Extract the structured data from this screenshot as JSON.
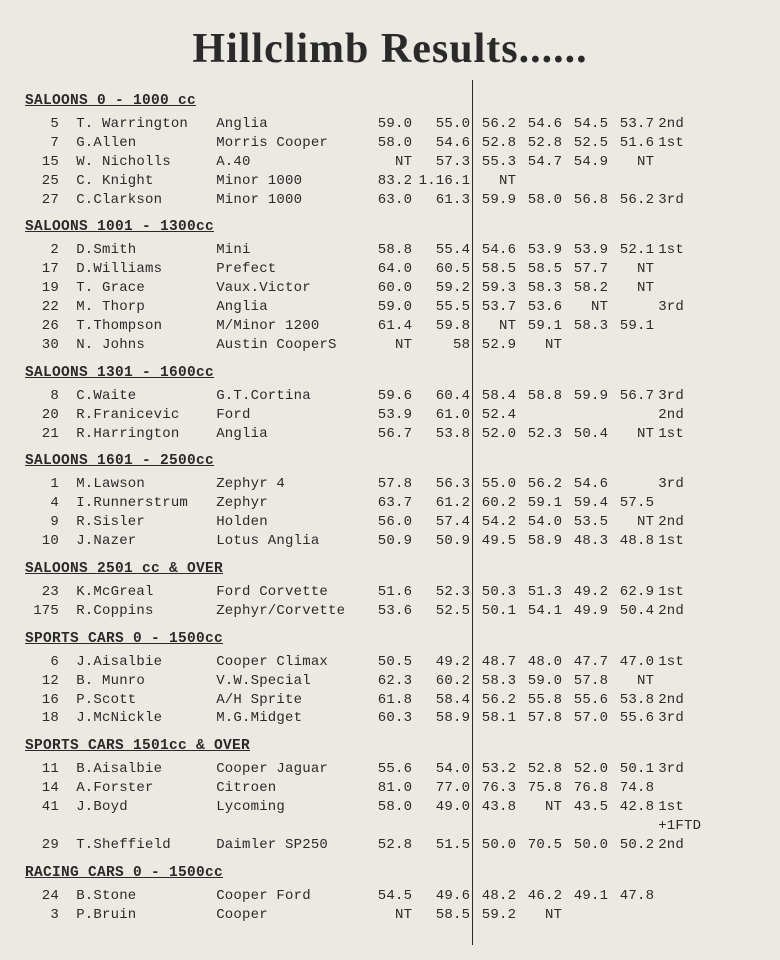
{
  "title": "Hillclimb Results......",
  "text_color": "#2a2a2a",
  "background_color": "#ece9e2",
  "sections": [
    {
      "header": "SALOONS 0 - 1000 cc",
      "rows": [
        {
          "num": "5",
          "name": "T. Warrington",
          "car": "Anglia",
          "t1": "59.0",
          "t2": "55.0",
          "t3": "56.2",
          "t4": "54.6",
          "t5": "54.5",
          "t6": "53.7",
          "place": "2nd"
        },
        {
          "num": "7",
          "name": "G.Allen",
          "car": "Morris Cooper",
          "t1": "58.0",
          "t2": "54.6",
          "t3": "52.8",
          "t4": "52.8",
          "t5": "52.5",
          "t6": "51.6",
          "place": "1st"
        },
        {
          "num": "15",
          "name": "W. Nicholls",
          "car": "A.40",
          "t1": "NT",
          "t2": "57.3",
          "t3": "55.3",
          "t4": "54.7",
          "t5": "54.9",
          "t6": "NT",
          "place": ""
        },
        {
          "num": "25",
          "name": "C. Knight",
          "car": "Minor 1000",
          "t1": "83.2",
          "t2": "1.16.1",
          "t3": "NT",
          "t4": "",
          "t5": "",
          "t6": "",
          "place": ""
        },
        {
          "num": "27",
          "name": "C.Clarkson",
          "car": "Minor 1000",
          "t1": "63.0",
          "t2": "61.3",
          "t3": "59.9",
          "t4": "58.0",
          "t5": "56.8",
          "t6": "56.2",
          "place": "3rd"
        }
      ]
    },
    {
      "header": "SALOONS 1001 - 1300cc",
      "rows": [
        {
          "num": "2",
          "name": "D.Smith",
          "car": "Mini",
          "t1": "58.8",
          "t2": "55.4",
          "t3": "54.6",
          "t4": "53.9",
          "t5": "53.9",
          "t6": "52.1",
          "place": "1st"
        },
        {
          "num": "17",
          "name": "D.Williams",
          "car": "Prefect",
          "t1": "64.0",
          "t2": "60.5",
          "t3": "58.5",
          "t4": "58.5",
          "t5": "57.7",
          "t6": "NT",
          "place": ""
        },
        {
          "num": "19",
          "name": "T. Grace",
          "car": "Vaux.Victor",
          "t1": "60.0",
          "t2": "59.2",
          "t3": "59.3",
          "t4": "58.3",
          "t5": "58.2",
          "t6": "NT",
          "place": ""
        },
        {
          "num": "22",
          "name": "M. Thorp",
          "car": "Anglia",
          "t1": "59.0",
          "t2": "55.5",
          "t3": "53.7",
          "t4": "53.6",
          "t5": "NT",
          "t6": "",
          "place": "3rd"
        },
        {
          "num": "26",
          "name": "T.Thompson",
          "car": "M/Minor 1200",
          "t1": "61.4",
          "t2": "59.8",
          "t3": "NT",
          "t4": "59.1",
          "t5": "58.3",
          "t6": "59.1",
          "place": ""
        },
        {
          "num": "30",
          "name": "N. Johns",
          "car": "Austin CooperS",
          "t1": "NT",
          "t2": "58",
          "t3": "52.9",
          "t4": "NT",
          "t5": "",
          "t6": "",
          "place": ""
        }
      ]
    },
    {
      "header": "SALOONS 1301 - 1600cc",
      "rows": [
        {
          "num": "8",
          "name": "C.Waite",
          "car": "G.T.Cortina",
          "t1": "59.6",
          "t2": "60.4",
          "t3": "58.4",
          "t4": "58.8",
          "t5": "59.9",
          "t6": "56.7",
          "place": "3rd"
        },
        {
          "num": "20",
          "name": "R.Franicevic",
          "car": "Ford",
          "t1": "53.9",
          "t2": "61.0",
          "t3": "52.4",
          "t4": "",
          "t5": "",
          "t6": "",
          "place": "2nd"
        },
        {
          "num": "21",
          "name": "R.Harrington",
          "car": "Anglia",
          "t1": "56.7",
          "t2": "53.8",
          "t3": "52.0",
          "t4": "52.3",
          "t5": "50.4",
          "t6": "NT",
          "place": "1st"
        }
      ]
    },
    {
      "header": "SALOONS 1601 - 2500cc",
      "rows": [
        {
          "num": "1",
          "name": "M.Lawson",
          "car": "Zephyr 4",
          "t1": "57.8",
          "t2": "56.3",
          "t3": "55.0",
          "t4": "56.2",
          "t5": "54.6",
          "t6": "",
          "place": "3rd"
        },
        {
          "num": "4",
          "name": "I.Runnerstrum",
          "car": "Zephyr",
          "t1": "63.7",
          "t2": "61.2",
          "t3": "60.2",
          "t4": "59.1",
          "t5": "59.4",
          "t6": "57.5",
          "place": ""
        },
        {
          "num": "9",
          "name": "R.Sisler",
          "car": "Holden",
          "t1": "56.0",
          "t2": "57.4",
          "t3": "54.2",
          "t4": "54.0",
          "t5": "53.5",
          "t6": "NT",
          "place": "2nd"
        },
        {
          "num": "10",
          "name": "J.Nazer",
          "car": "Lotus Anglia",
          "t1": "50.9",
          "t2": "50.9",
          "t3": "49.5",
          "t4": "58.9",
          "t5": "48.3",
          "t6": "48.8",
          "place": "1st"
        }
      ]
    },
    {
      "header": "SALOONS 2501 cc & OVER",
      "rows": [
        {
          "num": "23",
          "name": "K.McGreal",
          "car": "Ford Corvette",
          "t1": "51.6",
          "t2": "52.3",
          "t3": "50.3",
          "t4": "51.3",
          "t5": "49.2",
          "t6": "62.9",
          "place": "1st"
        },
        {
          "num": "175",
          "name": "R.Coppins",
          "car": "Zephyr/Corvette",
          "t1": "53.6",
          "t2": "52.5",
          "t3": "50.1",
          "t4": "54.1",
          "t5": "49.9",
          "t6": "50.4",
          "place": "2nd"
        }
      ]
    },
    {
      "header": "SPORTS CARS 0 - 1500cc",
      "rows": [
        {
          "num": "6",
          "name": "J.Aisalbie",
          "car": "Cooper Climax",
          "t1": "50.5",
          "t2": "49.2",
          "t3": "48.7",
          "t4": "48.0",
          "t5": "47.7",
          "t6": "47.0",
          "place": "1st"
        },
        {
          "num": "12",
          "name": "B. Munro",
          "car": "V.W.Special",
          "t1": "62.3",
          "t2": "60.2",
          "t3": "58.3",
          "t4": "59.0",
          "t5": "57.8",
          "t6": "NT",
          "place": ""
        },
        {
          "num": "16",
          "name": "P.Scott",
          "car": "A/H Sprite",
          "t1": "61.8",
          "t2": "58.4",
          "t3": "56.2",
          "t4": "55.8",
          "t5": "55.6",
          "t6": "53.8",
          "place": "2nd"
        },
        {
          "num": "18",
          "name": "J.McNickle",
          "car": "M.G.Midget",
          "t1": "60.3",
          "t2": "58.9",
          "t3": "58.1",
          "t4": "57.8",
          "t5": "57.0",
          "t6": "55.6",
          "place": "3rd"
        }
      ]
    },
    {
      "header": "SPORTS CARS 1501cc & OVER",
      "rows": [
        {
          "num": "11",
          "name": "B.Aisalbie",
          "car": "Cooper Jaguar",
          "t1": "55.6",
          "t2": "54.0",
          "t3": "53.2",
          "t4": "52.8",
          "t5": "52.0",
          "t6": "50.1",
          "place": "3rd"
        },
        {
          "num": "14",
          "name": "A.Forster",
          "car": "Citroen",
          "t1": "81.0",
          "t2": "77.0",
          "t3": "76.3",
          "t4": "75.8",
          "t5": "76.8",
          "t6": "74.8",
          "place": ""
        },
        {
          "num": "41",
          "name": "J.Boyd",
          "car": "Lycoming",
          "t1": "58.0",
          "t2": "49.0",
          "t3": "43.8",
          "t4": "NT",
          "t5": "43.5",
          "t6": "42.8",
          "place": "1st"
        },
        {
          "num": "",
          "name": "",
          "car": "",
          "t1": "",
          "t2": "",
          "t3": "",
          "t4": "",
          "t5": "",
          "t6": "",
          "place": "+1FTD"
        },
        {
          "num": "29",
          "name": "T.Sheffield",
          "car": "Daimler SP250",
          "t1": "52.8",
          "t2": "51.5",
          "t3": "50.0",
          "t4": "70.5",
          "t5": "50.0",
          "t6": "50.2",
          "place": "2nd"
        }
      ]
    },
    {
      "header": "RACING CARS 0 - 1500cc",
      "rows": [
        {
          "num": "24",
          "name": "B.Stone",
          "car": "Cooper Ford",
          "t1": "54.5",
          "t2": "49.6",
          "t3": "48.2",
          "t4": "46.2",
          "t5": "49.1",
          "t6": "47.8",
          "place": ""
        },
        {
          "num": "3",
          "name": "P.Bruin",
          "car": "Cooper",
          "t1": "NT",
          "t2": "58.5",
          "t3": "59.2",
          "t4": "NT",
          "t5": "",
          "t6": "",
          "place": ""
        }
      ]
    }
  ]
}
